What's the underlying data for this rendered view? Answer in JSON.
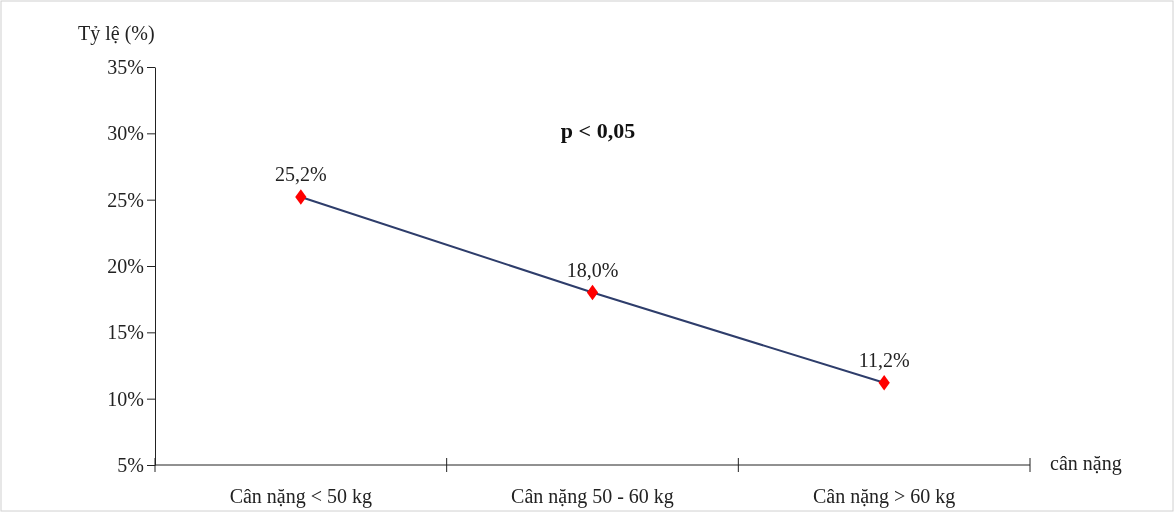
{
  "chart_data": {
    "type": "line",
    "categories": [
      "Cân nặng < 50 kg",
      "Cân nặng 50 - 60 kg",
      "Cân nặng > 60 kg"
    ],
    "series": [
      {
        "color": "#2e3d6b",
        "values": [
          25.2,
          18.0,
          11.2
        ],
        "value_labels": [
          "25,2%",
          "18,0%",
          "11,2%"
        ],
        "colors": [
          "#ff0000",
          "#ff0000",
          "#ff0000"
        ]
      }
    ],
    "marker": "diamond",
    "ylim": [
      5,
      35
    ],
    "yticks": [
      {
        "value": 5,
        "label": "5%"
      },
      {
        "value": 10,
        "label": "10%"
      },
      {
        "value": 15,
        "label": "15%"
      },
      {
        "value": 20,
        "label": "20%"
      },
      {
        "value": 25,
        "label": "25%"
      },
      {
        "value": 30,
        "label": "30%"
      },
      {
        "value": 35,
        "label": "35%"
      }
    ],
    "xlabel": "cân nặng",
    "ylabel": "Tỷ lệ (%)",
    "annotations": [
      "p < 0,05"
    ]
  }
}
